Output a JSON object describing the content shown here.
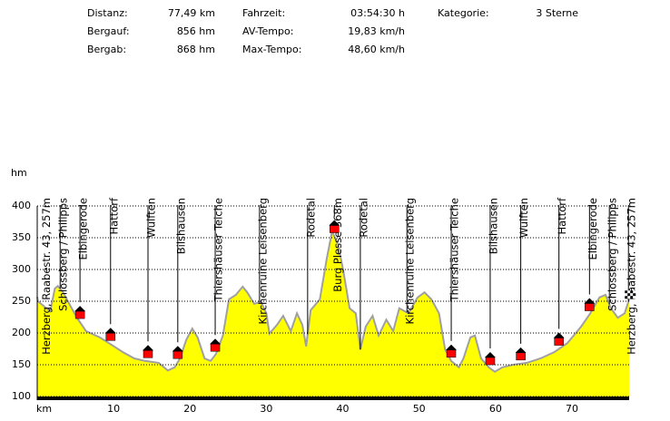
{
  "chart_data": {
    "type": "area",
    "stats": [
      {
        "label": "Distanz:",
        "value": "77,49 km"
      },
      {
        "label": "Bergauf:",
        "value": "856 hm"
      },
      {
        "label": "Bergab:",
        "value": "868 hm"
      },
      {
        "label": "Fahrzeit:",
        "value": "03:54:30 h"
      },
      {
        "label": "AV-Tempo:",
        "value": "19,83 km/h"
      },
      {
        "label": "Max-Tempo:",
        "value": "48,60 km/h"
      },
      {
        "label": "Kategorie:",
        "value": "3 Sterne"
      }
    ],
    "xlabel": "km",
    "ylabel": "hm",
    "xlim": [
      0,
      77.49
    ],
    "xticks": [
      10,
      20,
      30,
      40,
      50,
      60,
      70
    ],
    "ylim": [
      100,
      400
    ],
    "yticks": [
      100,
      150,
      200,
      250,
      300,
      350,
      400
    ],
    "grid": true,
    "color": "#ffff00",
    "line_color": "#a0a0a0",
    "x": [
      0,
      0.1,
      1.7,
      2.3,
      2.7,
      3.4,
      4.2,
      5.2,
      6.4,
      8.2,
      9.4,
      11.2,
      12.7,
      14.1,
      15.9,
      17.1,
      18.0,
      18.7,
      19.5,
      20.3,
      21.0,
      21.9,
      22.7,
      23.4,
      24.3,
      25.1,
      26.0,
      26.9,
      27.5,
      28.4,
      29.3,
      30.0,
      30.4,
      31.4,
      32.2,
      33.2,
      34.0,
      34.7,
      35.2,
      35.8,
      37.0,
      37.9,
      38.6,
      39.4,
      40.1,
      40.9,
      41.7,
      42.3,
      43.0,
      43.9,
      44.7,
      45.7,
      46.6,
      47.4,
      48.6,
      49.8,
      50.7,
      51.6,
      52.6,
      53.4,
      54.2,
      55.2,
      55.8,
      56.7,
      57.3,
      58.1,
      59.1,
      59.9,
      60.9,
      62.3,
      64.1,
      65.9,
      67.7,
      69.4,
      71.2,
      72.4,
      73.6,
      74.4,
      75.1,
      76.0,
      76.9,
      77.49
    ],
    "values": [
      257,
      250,
      234,
      270,
      274,
      264,
      246,
      224,
      203,
      193,
      184,
      170,
      160,
      156,
      153,
      141,
      146,
      160,
      189,
      207,
      193,
      160,
      156,
      167,
      196,
      253,
      260,
      273,
      264,
      246,
      249,
      231,
      199,
      213,
      227,
      203,
      231,
      213,
      179,
      236,
      253,
      317,
      360,
      339,
      296,
      239,
      231,
      174,
      210,
      227,
      196,
      221,
      203,
      239,
      231,
      256,
      264,
      253,
      231,
      174,
      156,
      146,
      160,
      193,
      196,
      160,
      146,
      139,
      146,
      150,
      153,
      160,
      170,
      184,
      210,
      231,
      256,
      260,
      239,
      224,
      231,
      253
    ],
    "waypoints": [
      {
        "label": "Herzberg, Raabestr. 43, 257m",
        "km": 0.8,
        "marker": "none"
      },
      {
        "label": "Schlossberg / Philipps",
        "km": 3.0,
        "marker": "none"
      },
      {
        "label": "Elbingerode",
        "km": 5.6,
        "marker": "house"
      },
      {
        "label": "Hattorf",
        "km": 9.6,
        "marker": "house"
      },
      {
        "label": "Wulften",
        "km": 14.5,
        "marker": "house"
      },
      {
        "label": "Bilshausen",
        "km": 18.4,
        "marker": "house"
      },
      {
        "label": "Thiershäuser Teiche",
        "km": 23.3,
        "marker": "house"
      },
      {
        "label": "Kirchenruine Leisenberg",
        "km": 29.1,
        "marker": "none"
      },
      {
        "label": "Rodetal",
        "km": 35.4,
        "marker": "none"
      },
      {
        "label": "Burg Plesse 368m",
        "km": 38.9,
        "marker": "house"
      },
      {
        "label": "Rodetal",
        "km": 42.3,
        "marker": "none"
      },
      {
        "label": "Kirchenruine Leisenberg",
        "km": 48.4,
        "marker": "none"
      },
      {
        "label": "Thiershäuser Teiche",
        "km": 54.2,
        "marker": "house"
      },
      {
        "label": "Bilshausen",
        "km": 59.3,
        "marker": "house"
      },
      {
        "label": "Wulften",
        "km": 63.3,
        "marker": "house"
      },
      {
        "label": "Hattorf",
        "km": 68.3,
        "marker": "house"
      },
      {
        "label": "Elbingerode",
        "km": 72.3,
        "marker": "house"
      },
      {
        "label": "Schlossberg / Philipps",
        "km": 74.9,
        "marker": "none"
      },
      {
        "label": "Herzberg, Raabestr. 43, 257m",
        "km": 77.4,
        "marker": "flag"
      }
    ]
  }
}
